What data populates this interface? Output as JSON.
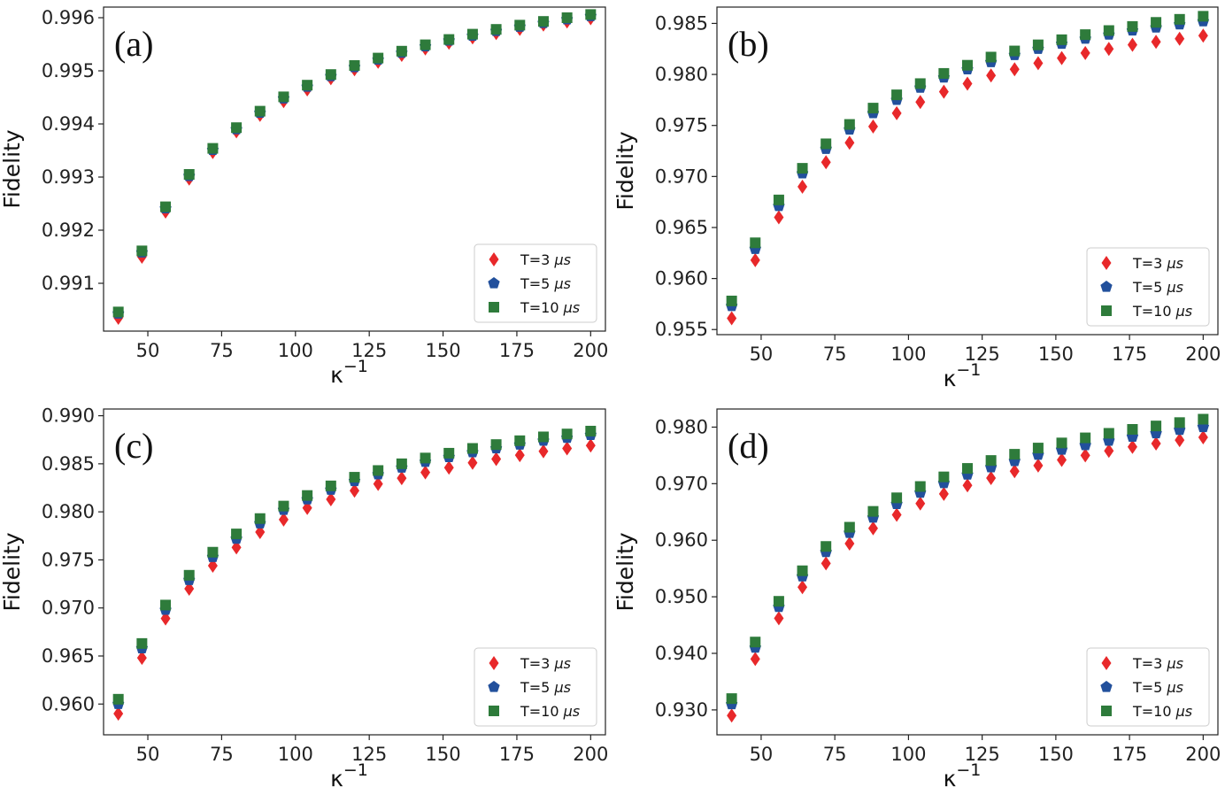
{
  "figure": {
    "colors": {
      "t3": "#e8282a",
      "t5": "#22509c",
      "t10": "#2e7b3b"
    },
    "markers": {
      "t3": "diamond",
      "t5": "pentagon",
      "t10": "square"
    }
  },
  "chart_data": [
    {
      "panel": "(a)",
      "type": "scatter",
      "xlabel": "κ",
      "xlabel_sup": "−1",
      "ylabel": "Fidelity",
      "xlim": [
        35,
        205
      ],
      "ylim": [
        0.9901,
        0.9962
      ],
      "xticks": [
        50,
        75,
        100,
        125,
        150,
        175,
        200
      ],
      "xtick_labels": [
        "50",
        "75",
        "100",
        "125",
        "150",
        "175",
        "200"
      ],
      "yticks": [
        0.991,
        0.992,
        0.993,
        0.994,
        0.995,
        0.996
      ],
      "ytick_labels": [
        "0.991",
        "0.992",
        "0.993",
        "0.994",
        "0.995",
        "0.996"
      ],
      "legend_position": "lower-right",
      "x": [
        40,
        48,
        56,
        64,
        72,
        80,
        88,
        96,
        104,
        112,
        120,
        128,
        136,
        144,
        152,
        160,
        168,
        176,
        184,
        192,
        200
      ],
      "series": [
        {
          "name": "T=3 μs",
          "label_main": "T=3 ",
          "label_unit": "μs",
          "values": [
            0.99035,
            0.9915,
            0.99235,
            0.99297,
            0.99347,
            0.99386,
            0.99417,
            0.99443,
            0.99465,
            0.99486,
            0.99503,
            0.99517,
            0.9953,
            0.99542,
            0.99553,
            0.99563,
            0.99571,
            0.99579,
            0.99587,
            0.99593,
            0.99599
          ]
        },
        {
          "name": "T=5 μs",
          "label_main": "T=5 ",
          "label_unit": "μs",
          "values": [
            0.99043,
            0.99158,
            0.99241,
            0.99302,
            0.99351,
            0.9939,
            0.99421,
            0.99448,
            0.9947,
            0.9949,
            0.99507,
            0.99521,
            0.99534,
            0.99546,
            0.99557,
            0.99566,
            0.99575,
            0.99583,
            0.9959,
            0.99597,
            0.99603
          ]
        },
        {
          "name": "T=10 μs",
          "label_main": "T=10 ",
          "label_unit": "μs",
          "values": [
            0.99046,
            0.99161,
            0.99244,
            0.99305,
            0.99354,
            0.99393,
            0.99424,
            0.99451,
            0.99473,
            0.99493,
            0.9951,
            0.99524,
            0.99537,
            0.99549,
            0.99559,
            0.99569,
            0.99578,
            0.99586,
            0.99593,
            0.996,
            0.99606
          ]
        }
      ]
    },
    {
      "panel": "(b)",
      "type": "scatter",
      "xlabel": "κ",
      "xlabel_sup": "−1",
      "ylabel": "Fidelity",
      "xlim": [
        35,
        205
      ],
      "ylim": [
        0.9545,
        0.9866
      ],
      "xticks": [
        50,
        75,
        100,
        125,
        150,
        175,
        200
      ],
      "xtick_labels": [
        "50",
        "75",
        "100",
        "125",
        "150",
        "175",
        "200"
      ],
      "yticks": [
        0.955,
        0.96,
        0.965,
        0.97,
        0.975,
        0.98,
        0.985
      ],
      "ytick_labels": [
        "0.955",
        "0.960",
        "0.965",
        "0.970",
        "0.975",
        "0.980",
        "0.985"
      ],
      "legend_position": "lower-right",
      "x": [
        40,
        48,
        56,
        64,
        72,
        80,
        88,
        96,
        104,
        112,
        120,
        128,
        136,
        144,
        152,
        160,
        168,
        176,
        184,
        192,
        200
      ],
      "series": [
        {
          "name": "T=3 μs",
          "label_main": "T=3 ",
          "label_unit": "μs",
          "values": [
            0.9561,
            0.9618,
            0.966,
            0.969,
            0.9714,
            0.9733,
            0.9749,
            0.9762,
            0.9773,
            0.9783,
            0.9791,
            0.9799,
            0.9805,
            0.9811,
            0.9816,
            0.9821,
            0.9825,
            0.9829,
            0.9832,
            0.9835,
            0.9838
          ]
        },
        {
          "name": "T=5 μs",
          "label_main": "T=5 ",
          "label_unit": "μs",
          "values": [
            0.9573,
            0.9629,
            0.9671,
            0.9703,
            0.9727,
            0.9746,
            0.9762,
            0.9775,
            0.9787,
            0.9797,
            0.9805,
            0.9812,
            0.9819,
            0.9825,
            0.983,
            0.9835,
            0.9839,
            0.9843,
            0.9846,
            0.9849,
            0.9852
          ]
        },
        {
          "name": "T=10 μs",
          "label_main": "T=10 ",
          "label_unit": "μs",
          "values": [
            0.9578,
            0.9635,
            0.9677,
            0.9708,
            0.9732,
            0.9751,
            0.9767,
            0.978,
            0.9791,
            0.9801,
            0.9809,
            0.9817,
            0.9823,
            0.9829,
            0.9834,
            0.9839,
            0.9843,
            0.9847,
            0.9851,
            0.9854,
            0.9857
          ]
        }
      ]
    },
    {
      "panel": "(c)",
      "type": "scatter",
      "xlabel": "κ",
      "xlabel_sup": "−1",
      "ylabel": "Fidelity",
      "xlim": [
        35,
        205
      ],
      "ylim": [
        0.9568,
        0.9907
      ],
      "xticks": [
        50,
        75,
        100,
        125,
        150,
        175,
        200
      ],
      "xtick_labels": [
        "50",
        "75",
        "100",
        "125",
        "150",
        "175",
        "200"
      ],
      "yticks": [
        0.96,
        0.965,
        0.97,
        0.975,
        0.98,
        0.985,
        0.99
      ],
      "ytick_labels": [
        "0.960",
        "0.965",
        "0.970",
        "0.975",
        "0.980",
        "0.985",
        "0.990"
      ],
      "legend_position": "lower-right",
      "x": [
        40,
        48,
        56,
        64,
        72,
        80,
        88,
        96,
        104,
        112,
        120,
        128,
        136,
        144,
        152,
        160,
        168,
        176,
        184,
        192,
        200
      ],
      "series": [
        {
          "name": "T=3 μs",
          "label_main": "T=3 ",
          "label_unit": "μs",
          "values": [
            0.959,
            0.9648,
            0.9689,
            0.972,
            0.9744,
            0.9763,
            0.9779,
            0.9792,
            0.9804,
            0.9813,
            0.9822,
            0.9829,
            0.9835,
            0.9841,
            0.9846,
            0.9851,
            0.9855,
            0.9859,
            0.9863,
            0.9866,
            0.9869
          ]
        },
        {
          "name": "T=5 μs",
          "label_main": "T=5 ",
          "label_unit": "μs",
          "values": [
            0.96,
            0.9658,
            0.9698,
            0.9729,
            0.9753,
            0.9772,
            0.9788,
            0.9802,
            0.9813,
            0.9823,
            0.9832,
            0.9839,
            0.9846,
            0.9852,
            0.9857,
            0.9862,
            0.9866,
            0.987,
            0.9874,
            0.9877,
            0.988
          ]
        },
        {
          "name": "T=10 μs",
          "label_main": "T=10 ",
          "label_unit": "μs",
          "values": [
            0.9605,
            0.9663,
            0.9703,
            0.9734,
            0.9758,
            0.9777,
            0.9793,
            0.9806,
            0.9817,
            0.9827,
            0.9836,
            0.9843,
            0.985,
            0.9856,
            0.9861,
            0.9866,
            0.987,
            0.9874,
            0.9878,
            0.9881,
            0.9884
          ]
        }
      ]
    },
    {
      "panel": "(d)",
      "type": "scatter",
      "xlabel": "κ",
      "xlabel_sup": "−1",
      "ylabel": "Fidelity",
      "xlim": [
        35,
        205
      ],
      "ylim": [
        0.9256,
        0.9832
      ],
      "xticks": [
        50,
        75,
        100,
        125,
        150,
        175,
        200
      ],
      "xtick_labels": [
        "50",
        "75",
        "100",
        "125",
        "150",
        "175",
        "200"
      ],
      "yticks": [
        0.93,
        0.94,
        0.95,
        0.96,
        0.97,
        0.98
      ],
      "ytick_labels": [
        "0.930",
        "0.940",
        "0.950",
        "0.960",
        "0.970",
        "0.980"
      ],
      "legend_position": "lower-right",
      "x": [
        40,
        48,
        56,
        64,
        72,
        80,
        88,
        96,
        104,
        112,
        120,
        128,
        136,
        144,
        152,
        160,
        168,
        176,
        184,
        192,
        200
      ],
      "series": [
        {
          "name": "T=3 μs",
          "label_main": "T=3 ",
          "label_unit": "μs",
          "values": [
            0.929,
            0.939,
            0.9462,
            0.9517,
            0.9559,
            0.9594,
            0.9621,
            0.9645,
            0.9665,
            0.9682,
            0.9697,
            0.971,
            0.9722,
            0.9732,
            0.9742,
            0.975,
            0.9758,
            0.9765,
            0.9771,
            0.9777,
            0.9782
          ]
        },
        {
          "name": "T=5 μs",
          "label_main": "T=5 ",
          "label_unit": "μs",
          "values": [
            0.931,
            0.941,
            0.9482,
            0.9536,
            0.9579,
            0.9613,
            0.964,
            0.9664,
            0.9684,
            0.9701,
            0.9716,
            0.9729,
            0.974,
            0.9751,
            0.976,
            0.9768,
            0.9776,
            0.9783,
            0.9789,
            0.9795,
            0.98
          ]
        },
        {
          "name": "T=10 μs",
          "label_main": "T=10 ",
          "label_unit": "μs",
          "values": [
            0.932,
            0.942,
            0.9492,
            0.9546,
            0.9589,
            0.9623,
            0.9651,
            0.9675,
            0.9695,
            0.9712,
            0.9727,
            0.9741,
            0.9752,
            0.9763,
            0.9772,
            0.9781,
            0.9789,
            0.9796,
            0.9802,
            0.9808,
            0.9814
          ]
        }
      ]
    }
  ]
}
